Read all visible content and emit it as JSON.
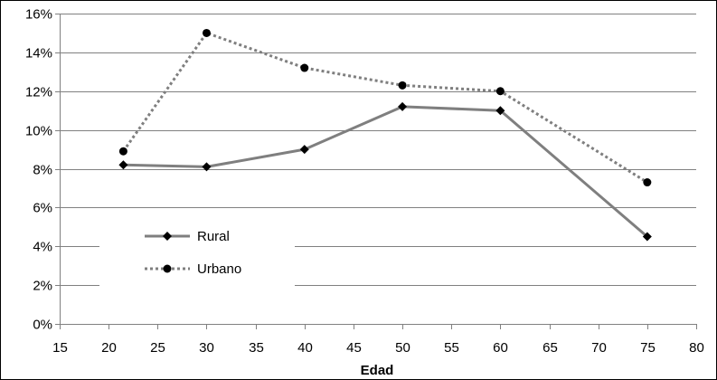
{
  "chart_data": {
    "type": "line",
    "title": "",
    "xlabel": "Edad",
    "ylabel": "",
    "xlim": [
      15,
      80
    ],
    "ylim": [
      0,
      16
    ],
    "x_ticks": [
      15,
      20,
      25,
      30,
      35,
      40,
      45,
      50,
      55,
      60,
      65,
      70,
      75,
      80
    ],
    "y_ticks": [
      0,
      2,
      4,
      6,
      8,
      10,
      12,
      14,
      16
    ],
    "y_tick_labels": [
      "0%",
      "2%",
      "4%",
      "6%",
      "8%",
      "10%",
      "12%",
      "14%",
      "16%"
    ],
    "grid": "horizontal",
    "legend_position": "bottom-left",
    "series": [
      {
        "name": "Rural",
        "style": "solid",
        "marker": "diamond",
        "color": "#7f7f7f",
        "points": [
          [
            21.5,
            8.2
          ],
          [
            30,
            8.1
          ],
          [
            40,
            9.0
          ],
          [
            50,
            11.2
          ],
          [
            60,
            11.0
          ],
          [
            75,
            4.5
          ]
        ]
      },
      {
        "name": "Urbano",
        "style": "dotted",
        "marker": "circle",
        "color": "#7f7f7f",
        "points": [
          [
            21.5,
            8.9
          ],
          [
            30,
            15.0
          ],
          [
            40,
            13.2
          ],
          [
            50,
            12.3
          ],
          [
            60,
            12.0
          ],
          [
            75,
            7.3
          ]
        ]
      }
    ]
  }
}
